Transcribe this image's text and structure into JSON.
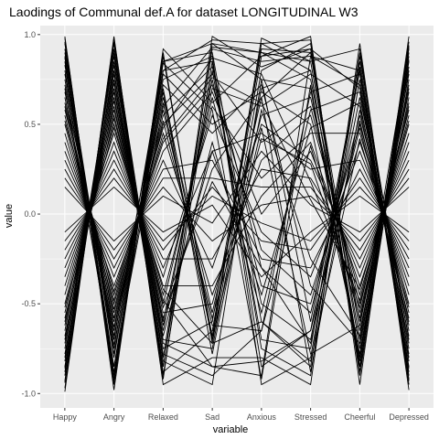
{
  "chart_data": {
    "type": "line",
    "title": "Laodings of Communal def.A for dataset LONGITUDINAL W3",
    "xlabel": "variable",
    "ylabel": "value",
    "categories": [
      "Happy",
      "Angry",
      "Relaxed",
      "Sad",
      "Anxious",
      "Stressed",
      "Cheerful",
      "Depressed"
    ],
    "ylim": [
      -1.08,
      1.05
    ],
    "yticks": [
      -1.0,
      -0.5,
      0.0,
      0.5,
      1.0
    ],
    "ytick_labels": [
      "-1.0",
      "-0.5",
      "0.0",
      "0.5",
      "1.0"
    ],
    "grid": true,
    "legend": "none",
    "colors": {
      "panel": "#ebebeb",
      "grid_major": "#ffffff",
      "line": "#000000"
    },
    "series": [
      {
        "values": [
          0.98,
          -0.95,
          0.88,
          -0.7,
          0.95,
          0.97,
          -0.88,
          0.96
        ]
      },
      {
        "values": [
          -0.97,
          0.98,
          -0.92,
          0.95,
          0.9,
          0.85,
          0.92,
          -0.95
        ]
      },
      {
        "values": [
          0.95,
          -0.9,
          0.85,
          0.9,
          -0.6,
          -0.85,
          0.9,
          -0.92
        ]
      },
      {
        "values": [
          -0.93,
          0.95,
          -0.88,
          -0.65,
          0.88,
          0.92,
          -0.85,
          0.94
        ]
      },
      {
        "values": [
          0.9,
          -0.85,
          0.8,
          0.97,
          0.95,
          0.8,
          -0.8,
          0.9
        ]
      },
      {
        "values": [
          -0.88,
          0.92,
          -0.85,
          0.85,
          -0.75,
          -0.9,
          0.85,
          -0.88
        ]
      },
      {
        "values": [
          0.85,
          -0.92,
          0.9,
          -0.72,
          0.8,
          0.95,
          -0.9,
          0.85
        ]
      },
      {
        "values": [
          -0.85,
          0.88,
          -0.8,
          0.92,
          0.85,
          0.88,
          0.8,
          -0.9
        ]
      },
      {
        "values": [
          0.92,
          -0.8,
          0.75,
          0.88,
          -0.95,
          -0.8,
          0.75,
          -0.85
        ]
      },
      {
        "values": [
          -0.9,
          0.85,
          -0.75,
          -0.6,
          0.92,
          0.9,
          -0.75,
          0.88
        ]
      },
      {
        "values": [
          0.8,
          -0.75,
          0.85,
          0.95,
          0.75,
          0.7,
          -0.85,
          0.8
        ]
      },
      {
        "values": [
          -0.8,
          0.9,
          -0.9,
          0.8,
          -0.7,
          -0.75,
          0.88,
          -0.8
        ]
      },
      {
        "values": [
          0.88,
          -0.88,
          0.7,
          -0.68,
          0.98,
          0.85,
          -0.7,
          0.92
        ]
      },
      {
        "values": [
          -0.75,
          0.8,
          -0.85,
          0.99,
          0.82,
          0.92,
          0.7,
          -0.75
        ]
      },
      {
        "values": [
          0.75,
          -0.7,
          0.8,
          0.85,
          -0.85,
          -0.65,
          0.8,
          -0.7
        ]
      },
      {
        "values": [
          -0.7,
          0.75,
          -0.7,
          -0.75,
          0.7,
          0.8,
          -0.8,
          0.75
        ]
      },
      {
        "values": [
          0.7,
          -0.85,
          0.6,
          0.93,
          0.9,
          0.75,
          -0.6,
          0.7
        ]
      },
      {
        "values": [
          -0.65,
          0.7,
          -0.65,
          0.75,
          -0.5,
          -0.7,
          0.65,
          -0.65
        ]
      },
      {
        "values": [
          0.65,
          -0.65,
          0.65,
          -0.55,
          0.65,
          0.9,
          -0.65,
          0.65
        ]
      },
      {
        "values": [
          -0.6,
          0.65,
          -0.6,
          0.7,
          0.6,
          0.78,
          0.6,
          -0.6
        ]
      },
      {
        "values": [
          0.6,
          -0.6,
          0.55,
          0.82,
          -0.3,
          -0.55,
          0.55,
          -0.55
        ]
      },
      {
        "values": [
          -0.55,
          0.6,
          -0.55,
          -0.5,
          0.55,
          0.65,
          -0.55,
          0.6
        ]
      },
      {
        "values": [
          0.55,
          -0.55,
          0.5,
          0.78,
          0.4,
          0.6,
          -0.5,
          0.55
        ]
      },
      {
        "values": [
          -0.5,
          0.55,
          -0.5,
          0.65,
          -0.4,
          -0.5,
          0.5,
          -0.5
        ]
      },
      {
        "values": [
          0.5,
          -0.5,
          0.45,
          -0.45,
          0.3,
          0.55,
          -0.45,
          0.5
        ]
      },
      {
        "values": [
          -0.45,
          0.5,
          -0.45,
          0.6,
          0.2,
          0.45,
          0.45,
          -0.45
        ]
      },
      {
        "values": [
          0.45,
          -0.45,
          0.4,
          0.72,
          -0.2,
          -0.45,
          0.4,
          -0.4
        ]
      },
      {
        "values": [
          -0.4,
          0.45,
          -0.4,
          -0.4,
          0.1,
          0.4,
          -0.4,
          0.45
        ]
      },
      {
        "values": [
          0.4,
          -0.4,
          0.35,
          0.68,
          0.0,
          0.35,
          -0.35,
          0.4
        ]
      },
      {
        "values": [
          -0.35,
          0.4,
          -0.35,
          0.55,
          -0.1,
          -0.35,
          0.35,
          -0.35
        ]
      },
      {
        "values": [
          0.35,
          -0.35,
          0.3,
          -0.3,
          0.5,
          0.3,
          -0.3,
          0.35
        ]
      },
      {
        "values": [
          -0.3,
          0.35,
          -0.3,
          0.35,
          0.45,
          0.25,
          0.3,
          -0.3
        ]
      },
      {
        "values": [
          0.3,
          -0.3,
          0.25,
          0.3,
          -0.25,
          -0.3,
          0.25,
          -0.25
        ]
      },
      {
        "values": [
          -0.25,
          0.3,
          -0.25,
          -0.25,
          0.25,
          0.2,
          -0.25,
          0.3
        ]
      },
      {
        "values": [
          0.25,
          -0.25,
          0.2,
          0.2,
          0.15,
          0.15,
          -0.2,
          0.25
        ]
      },
      {
        "values": [
          -0.2,
          0.25,
          -0.2,
          0.15,
          -0.15,
          -0.2,
          0.2,
          -0.2
        ]
      },
      {
        "values": [
          0.2,
          -0.2,
          0.15,
          -0.15,
          0.05,
          0.1,
          -0.15,
          0.2
        ]
      },
      {
        "values": [
          -0.15,
          0.2,
          -0.15,
          0.1,
          -0.05,
          -0.15,
          0.15,
          -0.15
        ]
      },
      {
        "values": [
          0.15,
          -0.15,
          0.1,
          -0.05,
          0.35,
          0.05,
          -0.1,
          0.15
        ]
      },
      {
        "values": [
          -0.1,
          0.15,
          -0.1,
          0.05,
          -0.35,
          -0.1,
          0.1,
          -0.1
        ]
      },
      {
        "values": [
          0.99,
          -0.98,
          0.92,
          0.62,
          0.88,
          0.99,
          -0.95,
          0.99
        ]
      },
      {
        "values": [
          -0.99,
          0.99,
          -0.95,
          -0.8,
          -0.8,
          -0.95,
          0.95,
          -0.98
        ]
      },
      {
        "values": [
          0.96,
          -0.93,
          0.84,
          0.58,
          -0.92,
          0.72,
          -0.82,
          0.93
        ]
      },
      {
        "values": [
          -0.94,
          0.96,
          -0.82,
          -0.95,
          0.75,
          -0.6,
          0.82,
          -0.93
        ]
      },
      {
        "values": [
          0.87,
          -0.78,
          0.78,
          0.5,
          0.68,
          0.5,
          -0.78,
          0.86
        ]
      },
      {
        "values": [
          -0.86,
          0.83,
          -0.78,
          -0.9,
          -0.65,
          0.68,
          0.78,
          -0.86
        ]
      },
      {
        "values": [
          0.83,
          -0.73,
          0.72,
          0.45,
          0.72,
          -0.4,
          -0.72,
          0.82
        ]
      },
      {
        "values": [
          -0.82,
          0.78,
          -0.72,
          -0.85,
          -0.9,
          0.88,
          0.72,
          -0.82
        ]
      },
      {
        "values": [
          0.78,
          -0.68,
          0.68,
          -0.78,
          0.58,
          -0.25,
          -0.68,
          0.78
        ]
      },
      {
        "values": [
          -0.78,
          0.73,
          -0.68,
          0.4,
          -0.55,
          0.58,
          0.68,
          -0.78
        ]
      },
      {
        "values": [
          0.72,
          -0.63,
          0.62,
          -0.7,
          0.48,
          -0.78,
          -0.62,
          0.72
        ]
      },
      {
        "values": [
          -0.72,
          0.68,
          -0.62,
          0.35,
          -0.45,
          0.48,
          0.62,
          -0.72
        ]
      },
      {
        "values": [
          0.68,
          -0.58,
          0.58,
          -0.62,
          -0.65,
          0.38,
          -0.58,
          0.68
        ]
      },
      {
        "values": [
          -0.68,
          0.63,
          -0.58,
          0.25,
          0.65,
          -0.88,
          0.58,
          -0.68
        ]
      },
      {
        "values": [
          0.62,
          -0.53,
          0.52,
          -0.58,
          0.42,
          0.28,
          -0.52,
          0.62
        ]
      },
      {
        "values": [
          -0.62,
          0.58,
          -0.52,
          0.18,
          -0.3,
          -0.72,
          0.52,
          -0.62
        ]
      },
      {
        "values": [
          0.58,
          -0.48,
          0.48,
          0.87,
          0.78,
          0.18,
          -0.48,
          0.58
        ]
      },
      {
        "values": [
          -0.58,
          0.53,
          -0.48,
          -0.85,
          -0.82,
          -0.65,
          0.48,
          -0.58
        ]
      },
      {
        "values": [
          0.52,
          -0.43,
          0.42,
          0.76,
          0.62,
          0.08,
          -0.42,
          0.52
        ]
      },
      {
        "values": [
          -0.52,
          0.48,
          -0.42,
          -0.72,
          -0.6,
          -0.82,
          0.42,
          -0.52
        ]
      }
    ]
  }
}
